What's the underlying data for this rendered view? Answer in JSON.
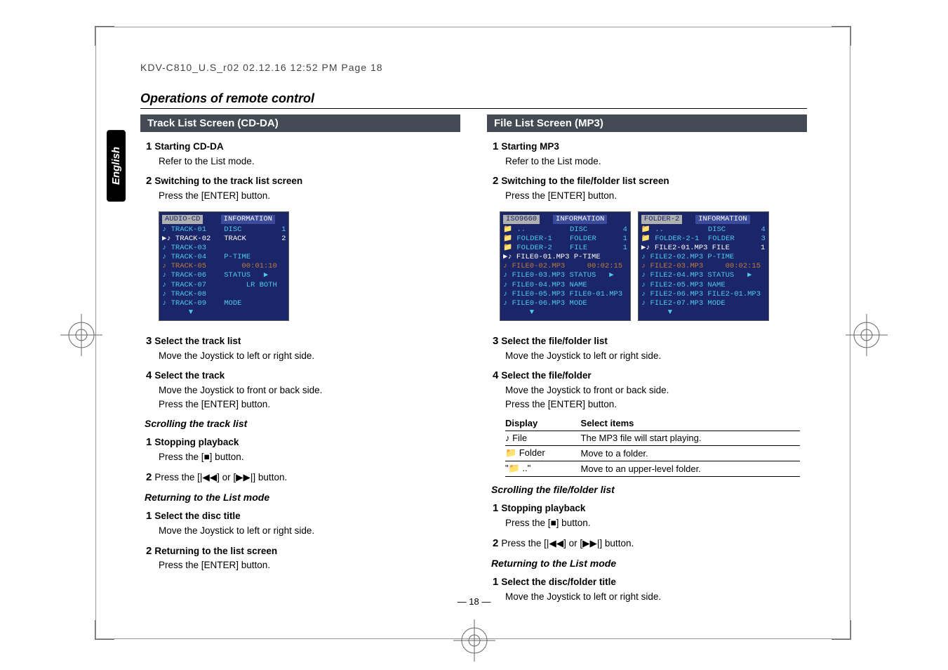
{
  "header": "KDV-C810_U.S_r02  02.12.16  12:52 PM  Page 18",
  "tab_label": "English",
  "section_title": "Operations of remote control",
  "page_number": "— 18 —",
  "left": {
    "block_title": "Track List Screen (CD-DA)",
    "steps_a": [
      {
        "n": "1",
        "t": "Starting CD-DA",
        "b": "Refer to the List mode."
      },
      {
        "n": "2",
        "t": "Switching to the track list screen",
        "b": "Press the [ENTER] button."
      }
    ],
    "screenshot": {
      "tab": "AUDIO-CD",
      "info": "INFORMATION",
      "rows": [
        "♪ TRACK-01    DISC         1",
        "▶♪ TRACK-02   TRACK        2",
        "♪ TRACK-03",
        "♪ TRACK-04    P-TIME",
        "♪ TRACK-05        00:01:10",
        "♪ TRACK-06    STATUS   ▶",
        "♪ TRACK-07         LR BOTH",
        "♪ TRACK-08",
        "♪ TRACK-09    MODE",
        "      ▼"
      ]
    },
    "steps_b": [
      {
        "n": "3",
        "t": "Select the track list",
        "b": "Move the Joystick to left or right side."
      },
      {
        "n": "4",
        "t": "Select the track",
        "b": "Move the Joystick to front or back side.\nPress the [ENTER] button."
      }
    ],
    "sub1": "Scrolling the track list",
    "steps_c": [
      {
        "n": "1",
        "t": "Stopping playback",
        "b": "Press the [■] button."
      },
      {
        "n": "2",
        "t": "",
        "b": "Press the [|◀◀] or [▶▶|] button."
      }
    ],
    "sub2": "Returning to the List mode",
    "steps_d": [
      {
        "n": "1",
        "t": "Select the disc title",
        "b": "Move the Joystick to left or right side."
      },
      {
        "n": "2",
        "t": "Returning to the list screen",
        "b": "Press the [ENTER] button."
      }
    ]
  },
  "right": {
    "block_title": "File List Screen (MP3)",
    "steps_a": [
      {
        "n": "1",
        "t": "Starting MP3",
        "b": "Refer to the List mode."
      },
      {
        "n": "2",
        "t": "Switching to the file/folder list screen",
        "b": "Press the [ENTER] button."
      }
    ],
    "screenshot1": {
      "tab": "ISO9660",
      "info": "INFORMATION",
      "rows": [
        "📁 ..          DISC        4",
        "📁 FOLDER-1    FOLDER      1",
        "📁 FOLDER-2    FILE        1",
        "▶♪ FILE0-01.MP3 P-TIME",
        "♪ FILE0-02.MP3     00:02:15",
        "♪ FILE0-03.MP3 STATUS   ▶",
        "♪ FILE0-04.MP3 NAME",
        "♪ FILE0-05.MP3 FILE0-01.MP3",
        "♪ FILE0-06.MP3 MODE",
        "      ▼"
      ]
    },
    "screenshot2": {
      "tab": "FOLDER-2",
      "info": "INFORMATION",
      "rows": [
        "📁 ..          DISC        4",
        "📁 FOLDER-2-1  FOLDER      3",
        "▶♪ FILE2-01.MP3 FILE       1",
        "♪ FILE2-02.MP3 P-TIME",
        "♪ FILE2-03.MP3     00:02:15",
        "♪ FILE2-04.MP3 STATUS   ▶",
        "♪ FILE2-05.MP3 NAME",
        "♪ FILE2-06.MP3 FILE2-01.MP3",
        "♪ FILE2-07.MP3 MODE",
        "      ▼"
      ]
    },
    "steps_b": [
      {
        "n": "3",
        "t": "Select the file/folder list",
        "b": "Move the Joystick to left or right side."
      },
      {
        "n": "4",
        "t": "Select the file/folder",
        "b": "Move the Joystick to front or back side.\nPress the [ENTER] button."
      }
    ],
    "table": {
      "h1": "Display",
      "h2": "Select items",
      "rows": [
        {
          "c1": "♪ File",
          "c2": "The MP3 file will start playing."
        },
        {
          "c1": "📁 Folder",
          "c2": "Move to a folder."
        },
        {
          "c1": "\"📁 ..\"",
          "c2": "Move to an upper-level folder."
        }
      ]
    },
    "sub1": "Scrolling the file/folder list",
    "steps_c": [
      {
        "n": "1",
        "t": "Stopping playback",
        "b": "Press the [■] button."
      },
      {
        "n": "2",
        "t": "",
        "b": "Press the [|◀◀] or [▶▶|] button."
      }
    ],
    "sub2": "Returning to the List mode",
    "steps_d": [
      {
        "n": "1",
        "t": "Select the disc/folder title",
        "b": "Move the Joystick to left or right side."
      }
    ]
  }
}
